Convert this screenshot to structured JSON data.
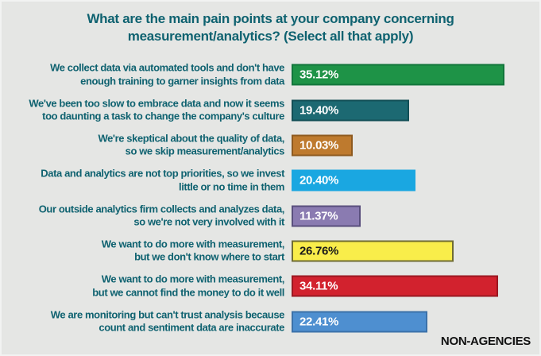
{
  "colors": {
    "background": "#e5e6e4",
    "title_text": "#0f6270",
    "label_text": "#0f6270",
    "footnote_text": "#111111"
  },
  "chart_data": {
    "type": "bar",
    "orientation": "horizontal",
    "title": "What are the main pain points at your company concerning measurement/analytics? (Select all that apply)",
    "title_lines": [
      "What are the main pain points at your company concerning",
      "measurement/analytics? (Select all that apply)"
    ],
    "footnote": "NON-AGENCIES",
    "xlim": [
      0,
      36.6
    ],
    "value_suffix": "%",
    "grid": false,
    "legend": false,
    "categories": [
      "We collect data via automated tools and don't have enough training to garner insights from data",
      "We've been too slow to embrace data and now it seems too daunting a task to change the company's culture",
      "We're skeptical about the quality of data, so we skip measurement/analytics",
      "Data and analytics are not top priorities, so we invest little or no time in them",
      "Our outside analytics firm collects and analyzes data, so we're not very involved with it",
      "We want to do more with measurement, but we don't know where to start",
      "We want to do more with measurement, but we cannot find the money to do it well",
      "We are monitoring but can't trust analysis because count and sentiment data are inaccurate"
    ],
    "values": [
      35.12,
      19.4,
      10.03,
      20.4,
      11.37,
      26.76,
      34.11,
      22.41
    ],
    "bars": [
      {
        "label_lines": [
          "We collect data via automated tools and don't have",
          "enough training to garner insights from data"
        ],
        "value": 35.12,
        "value_label": "35.12%",
        "fill": "#1e9347",
        "border": "#11763b",
        "value_color": "#ffffff"
      },
      {
        "label_lines": [
          "We've been too slow to embrace data and now it seems",
          "too daunting a task to change the company's culture"
        ],
        "value": 19.4,
        "value_label": "19.40%",
        "fill": "#1c6972",
        "border": "#124f56",
        "value_color": "#ffffff"
      },
      {
        "label_lines": [
          "We're skeptical about the quality of data,",
          "so we skip measurement/analytics"
        ],
        "value": 10.03,
        "value_label": "10.03%",
        "fill": "#be7a2e",
        "border": "#8e5a1f",
        "value_color": "#ffffff"
      },
      {
        "label_lines": [
          "Data and analytics are not top priorities, so we invest",
          "little or no time in them"
        ],
        "value": 20.4,
        "value_label": "20.40%",
        "fill": "#1aa7e1",
        "border": "#1aa7e1",
        "value_color": "#ffffff"
      },
      {
        "label_lines": [
          "Our outside analytics firm collects and analyzes data,",
          "so we're not very involved with it"
        ],
        "value": 11.37,
        "value_label": "11.37%",
        "fill": "#8a7bb1",
        "border": "#594f7d",
        "value_color": "#ffffff"
      },
      {
        "label_lines": [
          "We want to do more with measurement,",
          "but we don't know where to start"
        ],
        "value": 26.76,
        "value_label": "26.76%",
        "fill": "#f9ed4a",
        "border": "#6f6c33",
        "value_color": "#1a1a1a"
      },
      {
        "label_lines": [
          "We want to do more with measurement,",
          "but we cannot find the money to do it well"
        ],
        "value": 34.11,
        "value_label": "34.11%",
        "fill": "#d2222e",
        "border": "#9b1821",
        "value_color": "#ffffff"
      },
      {
        "label_lines": [
          "We are monitoring but can't trust analysis because",
          "count and sentiment data are inaccurate"
        ],
        "value": 22.41,
        "value_label": "22.41%",
        "fill": "#4e8fd0",
        "border": "#3b71a9",
        "value_color": "#ffffff"
      }
    ]
  }
}
